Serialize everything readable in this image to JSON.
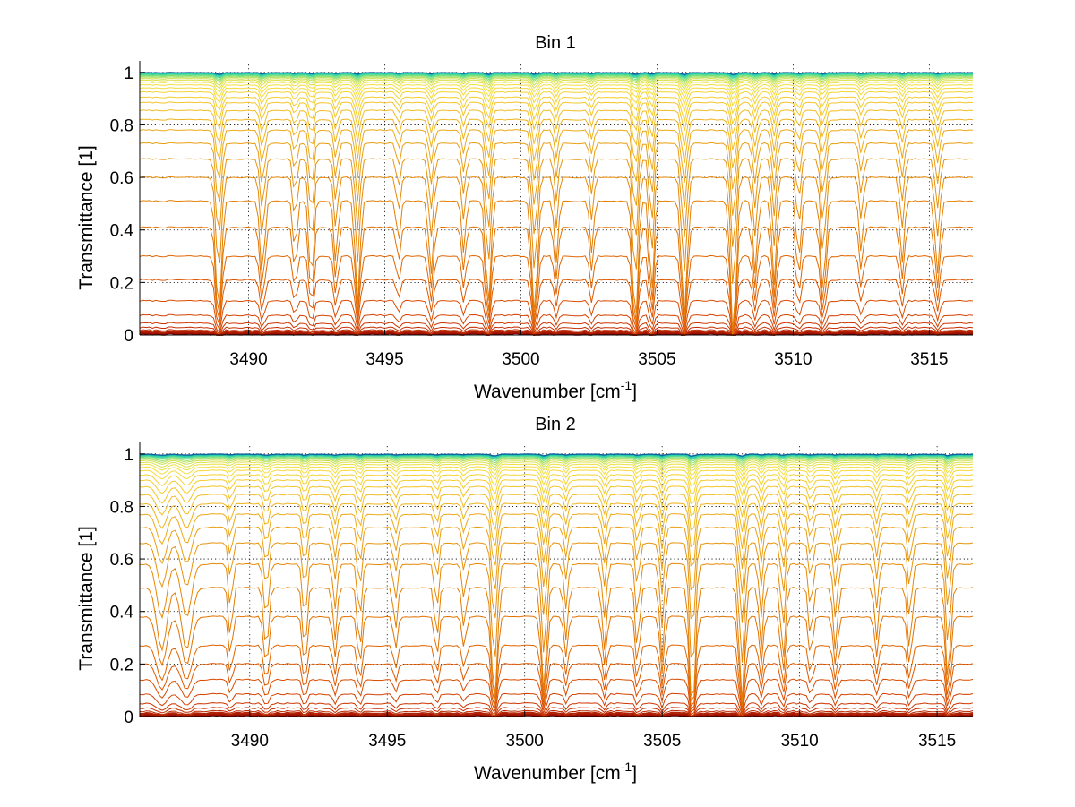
{
  "chart_data": [
    {
      "type": "line",
      "title": "Bin 1",
      "xlabel": "Wavenumber [cm",
      "xlabel_sup": "-1",
      "xlabel_end": "]",
      "ylabel": "Transmittance [1]",
      "xlim": [
        3486.0,
        3516.6
      ],
      "ylim": [
        0,
        1.03
      ],
      "xticks": [
        3490,
        3495,
        3500,
        3505,
        3510,
        3515
      ],
      "yticks": [
        0,
        0.2,
        0.4,
        0.6,
        0.8,
        1
      ],
      "ytick_labels": [
        "0",
        "0.2",
        "0.4",
        "0.6",
        "0.8",
        "1"
      ],
      "grid": true,
      "series_count": 36,
      "series_baseline": [
        0.003,
        0.005,
        0.008,
        0.012,
        0.018,
        0.028,
        0.045,
        0.075,
        0.13,
        0.21,
        0.3,
        0.41,
        0.51,
        0.6,
        0.67,
        0.73,
        0.78,
        0.82,
        0.855,
        0.885,
        0.905,
        0.925,
        0.94,
        0.952,
        0.962,
        0.97,
        0.976,
        0.981,
        0.985,
        0.988,
        0.991,
        0.993,
        0.995,
        0.997,
        0.998,
        0.999
      ],
      "colormap": [
        "#8b0000",
        "#b22000",
        "#cc3300",
        "#dd5500",
        "#e47a00",
        "#e89a10",
        "#f0b820",
        "#f5d030",
        "#f5e040",
        "#c8e050",
        "#70e080",
        "#20d0b0",
        "#0a5a9a"
      ],
      "absorption_lines": [
        {
          "x": 3488.9,
          "depth": 0.55,
          "width": 0.14
        },
        {
          "x": 3490.5,
          "depth": 0.35,
          "width": 0.12
        },
        {
          "x": 3491.7,
          "depth": 0.25,
          "width": 0.1
        },
        {
          "x": 3492.3,
          "depth": 0.4,
          "width": 0.11
        },
        {
          "x": 3493.2,
          "depth": 0.3,
          "width": 0.1
        },
        {
          "x": 3494.0,
          "depth": 0.5,
          "width": 0.12
        },
        {
          "x": 3495.5,
          "depth": 0.2,
          "width": 0.1
        },
        {
          "x": 3496.7,
          "depth": 0.35,
          "width": 0.12
        },
        {
          "x": 3497.9,
          "depth": 0.25,
          "width": 0.1
        },
        {
          "x": 3498.8,
          "depth": 0.5,
          "width": 0.13
        },
        {
          "x": 3500.5,
          "depth": 0.55,
          "width": 0.14
        },
        {
          "x": 3501.3,
          "depth": 0.3,
          "width": 0.1
        },
        {
          "x": 3502.6,
          "depth": 0.25,
          "width": 0.1
        },
        {
          "x": 3504.2,
          "depth": 0.6,
          "width": 0.13
        },
        {
          "x": 3504.8,
          "depth": 0.45,
          "width": 0.11
        },
        {
          "x": 3506.0,
          "depth": 0.55,
          "width": 0.14
        },
        {
          "x": 3507.8,
          "depth": 0.65,
          "width": 0.14
        },
        {
          "x": 3508.6,
          "depth": 0.35,
          "width": 0.11
        },
        {
          "x": 3509.3,
          "depth": 0.4,
          "width": 0.11
        },
        {
          "x": 3510.2,
          "depth": 0.3,
          "width": 0.1
        },
        {
          "x": 3511.1,
          "depth": 0.45,
          "width": 0.12
        },
        {
          "x": 3512.5,
          "depth": 0.25,
          "width": 0.1
        },
        {
          "x": 3514.0,
          "depth": 0.3,
          "width": 0.11
        },
        {
          "x": 3515.3,
          "depth": 0.35,
          "width": 0.12
        }
      ]
    },
    {
      "type": "line",
      "title": "Bin 2",
      "xlabel": "Wavenumber [cm",
      "xlabel_sup": "-1",
      "xlabel_end": "]",
      "ylabel": "Transmittance [1]",
      "xlim": [
        3486.0,
        3516.3
      ],
      "ylim": [
        0,
        1.03
      ],
      "xticks": [
        3490,
        3495,
        3500,
        3505,
        3510,
        3515
      ],
      "yticks": [
        0,
        0.2,
        0.4,
        0.6,
        0.8,
        1
      ],
      "ytick_labels": [
        "0",
        "0.2",
        "0.4",
        "0.6",
        "0.8",
        "1"
      ],
      "grid": true,
      "series_count": 36,
      "series_baseline": [
        0.003,
        0.005,
        0.008,
        0.013,
        0.02,
        0.032,
        0.05,
        0.085,
        0.14,
        0.2,
        0.27,
        0.38,
        0.49,
        0.58,
        0.66,
        0.72,
        0.77,
        0.81,
        0.845,
        0.875,
        0.9,
        0.92,
        0.937,
        0.95,
        0.96,
        0.968,
        0.975,
        0.98,
        0.984,
        0.988,
        0.991,
        0.993,
        0.995,
        0.997,
        0.998,
        0.999
      ],
      "colormap": [
        "#8b0000",
        "#b22000",
        "#cc3300",
        "#dd5500",
        "#e47a00",
        "#e89a10",
        "#f0b820",
        "#f5d030",
        "#f5e040",
        "#c8e050",
        "#70e080",
        "#20d0b0",
        "#0a5a9a"
      ],
      "absorption_lines": [
        {
          "x": 3486.8,
          "depth": 0.3,
          "width": 0.25
        },
        {
          "x": 3487.7,
          "depth": 0.3,
          "width": 0.25
        },
        {
          "x": 3489.3,
          "depth": 0.25,
          "width": 0.1
        },
        {
          "x": 3490.6,
          "depth": 0.3,
          "width": 0.12
        },
        {
          "x": 3492.0,
          "depth": 0.3,
          "width": 0.11
        },
        {
          "x": 3493.1,
          "depth": 0.25,
          "width": 0.1
        },
        {
          "x": 3494.0,
          "depth": 0.3,
          "width": 0.11
        },
        {
          "x": 3495.3,
          "depth": 0.2,
          "width": 0.1
        },
        {
          "x": 3496.8,
          "depth": 0.25,
          "width": 0.1
        },
        {
          "x": 3497.8,
          "depth": 0.2,
          "width": 0.1
        },
        {
          "x": 3498.9,
          "depth": 0.55,
          "width": 0.14
        },
        {
          "x": 3500.7,
          "depth": 0.5,
          "width": 0.13
        },
        {
          "x": 3501.5,
          "depth": 0.25,
          "width": 0.1
        },
        {
          "x": 3502.9,
          "depth": 0.3,
          "width": 0.11
        },
        {
          "x": 3504.1,
          "depth": 0.3,
          "width": 0.1
        },
        {
          "x": 3505.0,
          "depth": 0.35,
          "width": 0.11
        },
        {
          "x": 3506.1,
          "depth": 0.6,
          "width": 0.14
        },
        {
          "x": 3507.9,
          "depth": 0.55,
          "width": 0.13
        },
        {
          "x": 3508.6,
          "depth": 0.3,
          "width": 0.1
        },
        {
          "x": 3509.4,
          "depth": 0.35,
          "width": 0.11
        },
        {
          "x": 3510.4,
          "depth": 0.25,
          "width": 0.1
        },
        {
          "x": 3511.3,
          "depth": 0.3,
          "width": 0.11
        },
        {
          "x": 3512.8,
          "depth": 0.25,
          "width": 0.1
        },
        {
          "x": 3514.0,
          "depth": 0.3,
          "width": 0.11
        },
        {
          "x": 3515.4,
          "depth": 0.45,
          "width": 0.12
        }
      ]
    }
  ]
}
